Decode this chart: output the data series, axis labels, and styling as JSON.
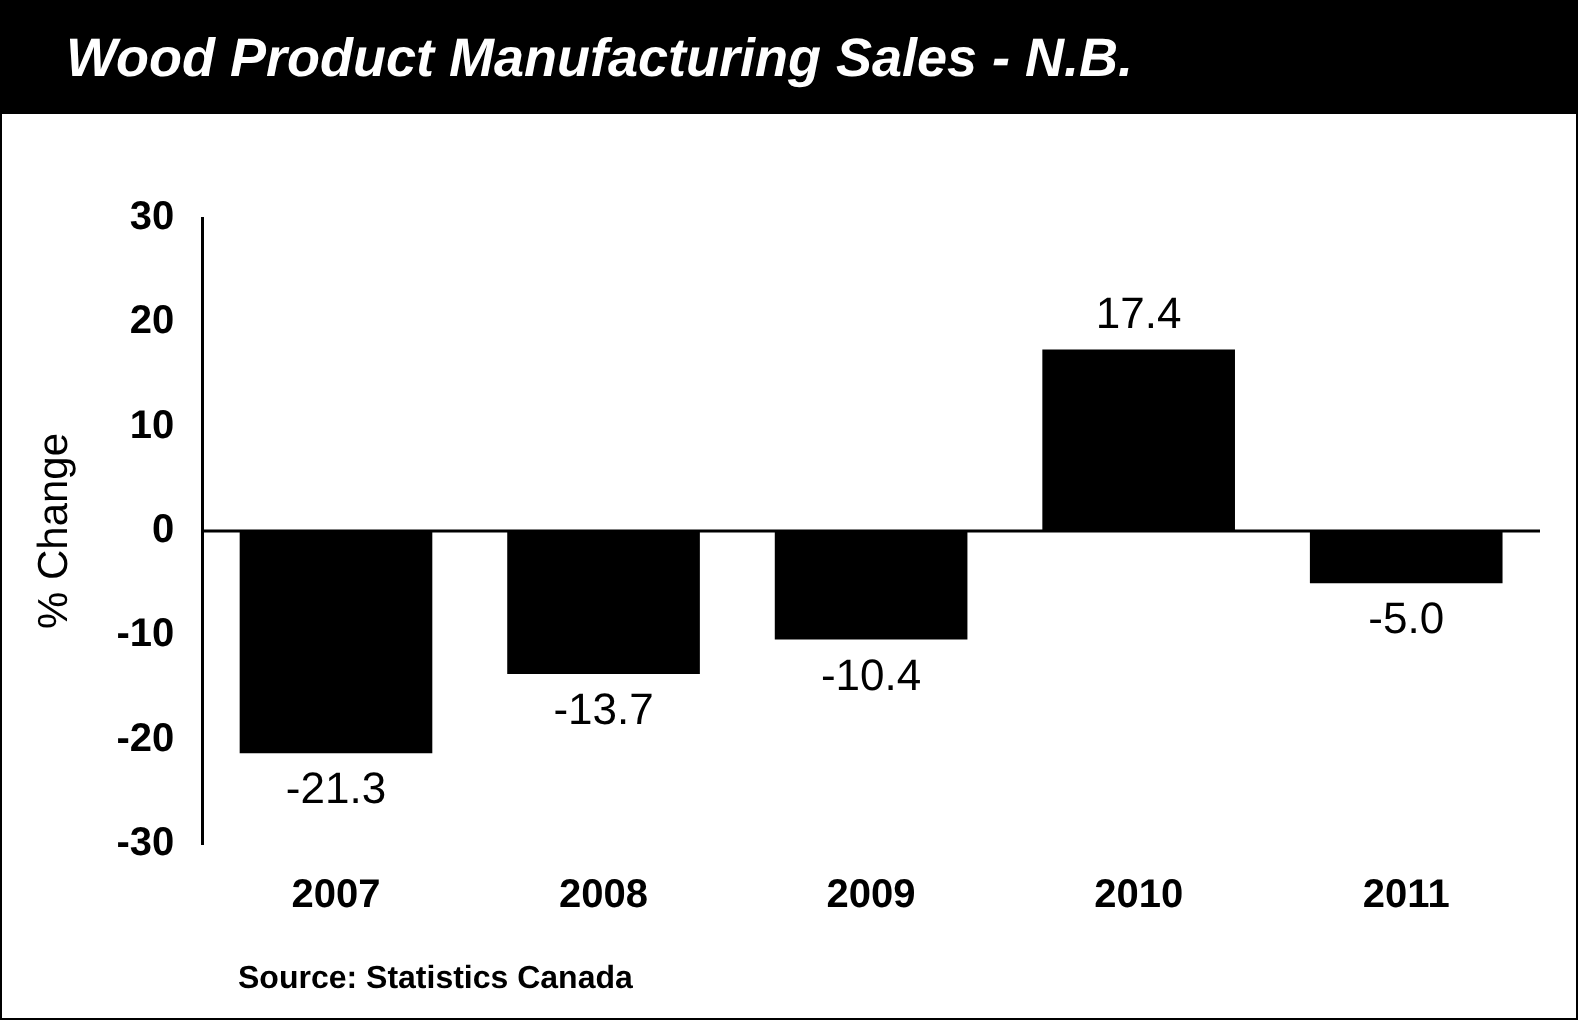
{
  "chart_data": {
    "type": "bar",
    "title": "Wood Product Manufacturing Sales - N.B.",
    "ylabel": "% Change",
    "categories": [
      "2007",
      "2008",
      "2009",
      "2010",
      "2011"
    ],
    "values": [
      -21.3,
      -13.7,
      -10.4,
      17.4,
      -5.0
    ],
    "color": "#000000",
    "value_labels": [
      "-21.3",
      "-13.7",
      "-10.4",
      "17.4",
      "-5.0"
    ],
    "ref_lines": [
      {
        "axis": "y",
        "value": 0,
        "color": "#000000"
      }
    ],
    "ylim": [
      -30,
      30
    ],
    "yticks": [
      -30,
      -20,
      -10,
      0,
      10,
      20,
      30
    ],
    "grid": false,
    "legend": false,
    "annotations": [
      "Source: Statistics Canada"
    ]
  }
}
